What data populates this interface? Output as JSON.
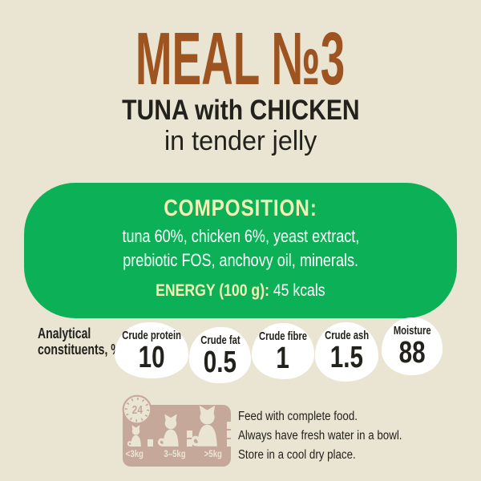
{
  "header": {
    "title": "MEAL №3",
    "product": "TUNA with CHICKEN",
    "variant": "in tender jelly"
  },
  "composition": {
    "heading": "COMPOSITION:",
    "ingredients_line1": "tuna 60%, chicken 6%, yeast extract,",
    "ingredients_line2": "prebiotic FOS, anchovy oil, minerals.",
    "energy_label": "ENERGY (100 g):",
    "energy_value": "45 kcals"
  },
  "analysis": {
    "label_line1": "Analytical",
    "label_line2": "constituents, %",
    "items": [
      {
        "name": "Crude protein",
        "value": "10"
      },
      {
        "name": "Crude fat",
        "value": "0.5"
      },
      {
        "name": "Crude fibre",
        "value": "1"
      },
      {
        "name": "Crude ash",
        "value": "1.5"
      },
      {
        "name": "Moisture",
        "value": "88"
      }
    ]
  },
  "feeding": {
    "clock_hours": "24",
    "cats": [
      {
        "weight": "<3kg",
        "portions": 1
      },
      {
        "weight": "3–5kg",
        "portions": 2
      },
      {
        "weight": ">5kg",
        "portions": 3
      }
    ],
    "instructions": [
      "Feed with complete food.",
      "Always have fresh water in a bowl.",
      "Store in a cool dry place."
    ]
  },
  "colors": {
    "background": "#eae5d3",
    "title_brown": "#9e5420",
    "text_dark": "#23211c",
    "panel_green": "#0cb157",
    "accent_yellow": "#f1f0b5",
    "panel_tan": "#c6a89b",
    "blob_white": "#ffffff"
  }
}
